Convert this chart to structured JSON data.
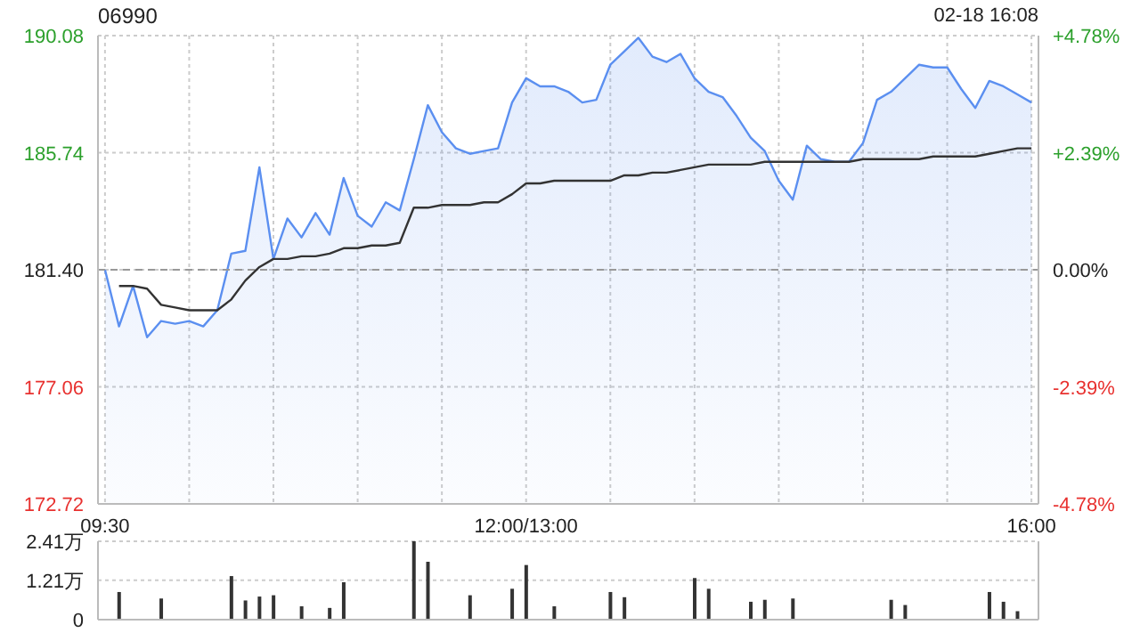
{
  "chart_data": [
    {
      "type": "area",
      "title": "06990",
      "annotations": [
        "02-18 16:08"
      ],
      "categories": [
        "09:30",
        null,
        null,
        null,
        null,
        null,
        null,
        null,
        null,
        null,
        null,
        null,
        null,
        null,
        null,
        null,
        null,
        null,
        null,
        null,
        null,
        null,
        null,
        null,
        null,
        null,
        null,
        null,
        null,
        null,
        "12:00/13:00",
        null,
        null,
        null,
        null,
        null,
        null,
        null,
        null,
        null,
        null,
        null,
        null,
        null,
        null,
        null,
        null,
        null,
        null,
        null,
        null,
        null,
        null,
        null,
        null,
        null,
        null,
        null,
        null,
        null,
        null,
        null,
        null,
        null,
        null,
        null,
        "16:00"
      ],
      "ylim": [
        172.72,
        190.08
      ],
      "yticks": [
        172.72,
        177.06,
        {
          "value": 181.4,
          "label": "181.40"
        },
        185.74,
        190.08
      ],
      "y2lim": [
        -4.78,
        4.78
      ],
      "y2ticks": [
        {
          "value": -4.78,
          "label": "-4.78%"
        },
        {
          "value": -2.39,
          "label": "-2.39%"
        },
        {
          "value": 0,
          "label": "0.00%"
        },
        {
          "value": 2.39,
          "label": "+2.39%"
        },
        {
          "value": 4.78,
          "label": "+4.78%"
        }
      ],
      "ref_lines": [
        {
          "axis": "y",
          "value": 181.4,
          "color": "#999999",
          "line_style": "dashed"
        }
      ],
      "grid": true,
      "legend": false,
      "marker": "none",
      "series": [
        {
          "color": "#5b8ff0",
          "values": [
            181.4,
            179.3,
            180.8,
            178.9,
            179.5,
            179.4,
            179.5,
            179.3,
            179.9,
            182.0,
            182.1,
            185.2,
            181.8,
            183.3,
            182.6,
            183.5,
            182.7,
            184.8,
            183.4,
            183.0,
            183.9,
            183.6,
            185.5,
            187.5,
            186.5,
            185.9,
            185.7,
            185.8,
            185.9,
            187.6,
            188.5,
            188.2,
            188.2,
            188.0,
            187.6,
            187.7,
            189.0,
            189.5,
            190.0,
            189.3,
            189.1,
            189.4,
            188.5,
            188.0,
            187.8,
            187.1,
            186.3,
            185.8,
            184.7,
            184.0,
            186.0,
            185.5,
            185.4,
            185.4,
            186.1,
            187.7,
            188.0,
            188.5,
            189.0,
            188.9,
            188.9,
            188.1,
            187.4,
            188.4,
            188.2,
            187.9,
            187.6
          ]
        },
        {
          "type": "line",
          "color": "#333333",
          "values": [
            null,
            180.8,
            180.8,
            180.7,
            180.1,
            180.0,
            179.9,
            179.9,
            179.9,
            180.3,
            181.0,
            181.5,
            181.8,
            181.8,
            181.9,
            181.9,
            182.0,
            182.2,
            182.2,
            182.3,
            182.3,
            182.4,
            183.7,
            183.7,
            183.8,
            183.8,
            183.8,
            183.9,
            183.9,
            184.2,
            184.6,
            184.6,
            184.7,
            184.7,
            184.7,
            184.7,
            184.7,
            184.9,
            184.9,
            185.0,
            185.0,
            185.1,
            185.2,
            185.3,
            185.3,
            185.3,
            185.3,
            185.4,
            185.4,
            185.4,
            185.4,
            185.4,
            185.4,
            185.4,
            185.5,
            185.5,
            185.5,
            185.5,
            185.5,
            185.6,
            185.6,
            185.6,
            185.6,
            185.7,
            185.8,
            185.9,
            185.9
          ]
        }
      ]
    },
    {
      "type": "bar",
      "tick_labels": "y",
      "ylim": [
        0,
        2.41
      ],
      "yticks": [
        0,
        {
          "value": 1.21,
          "label": "1.21万"
        },
        {
          "value": 2.41,
          "label": "2.41万"
        }
      ],
      "grid": true,
      "series": [
        {
          "color": "#333333",
          "values": [
            null,
            0.85,
            null,
            null,
            0.65,
            null,
            null,
            null,
            null,
            1.34,
            0.59,
            0.71,
            0.75,
            null,
            0.41,
            null,
            0.36,
            1.15,
            null,
            null,
            null,
            null,
            2.41,
            1.78,
            null,
            null,
            0.75,
            null,
            null,
            0.95,
            1.68,
            null,
            0.41,
            null,
            null,
            null,
            0.85,
            0.69,
            null,
            null,
            null,
            null,
            1.28,
            0.95,
            null,
            null,
            0.55,
            0.61,
            null,
            0.65,
            null,
            null,
            null,
            null,
            null,
            null,
            0.61,
            0.45,
            null,
            null,
            null,
            null,
            null,
            0.85,
            0.55,
            0.26,
            null
          ]
        }
      ]
    }
  ]
}
